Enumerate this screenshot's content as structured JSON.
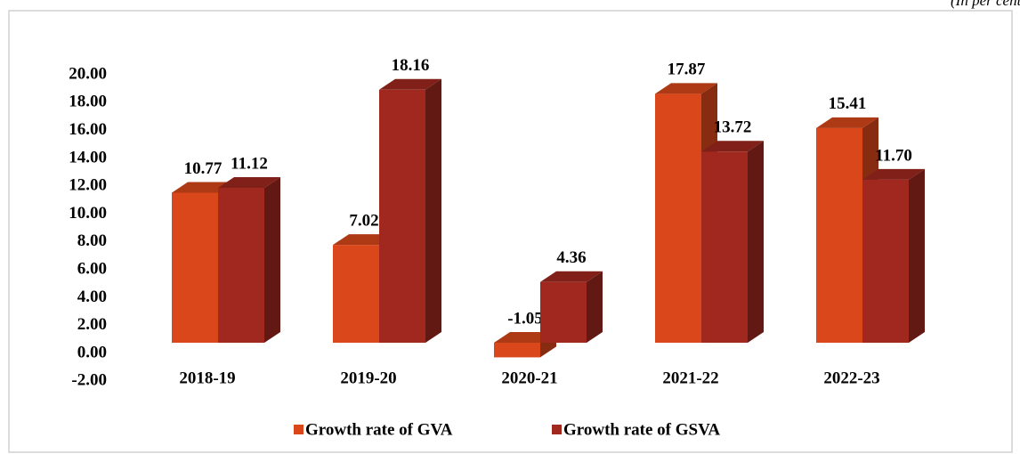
{
  "chart_data": {
    "type": "bar3d",
    "subtitle": "(In per cent)",
    "categories": [
      "2018-19",
      "2019-20",
      "2020-21",
      "2021-22",
      "2022-23"
    ],
    "series": [
      {
        "name": "Growth rate of GVA",
        "color": "#d9471a",
        "values": [
          10.77,
          7.02,
          -1.05,
          17.87,
          15.41
        ],
        "value_labels": [
          "10.77",
          "7.02",
          "-1.05",
          "17.87",
          "15.41"
        ]
      },
      {
        "name": "Growth rate of GSVA",
        "color": "#a0281e",
        "values": [
          11.12,
          18.16,
          4.36,
          13.72,
          11.7
        ],
        "value_labels": [
          "11.12",
          "18.16",
          "4.36",
          "13.72",
          "11.70"
        ]
      }
    ],
    "ylim": [
      -2,
      20
    ],
    "yticks": [
      {
        "value": -2,
        "label": "-2.00"
      },
      {
        "value": 0,
        "label": "0.00"
      },
      {
        "value": 2,
        "label": "2.00"
      },
      {
        "value": 4,
        "label": "4.00"
      },
      {
        "value": 6,
        "label": "6.00"
      },
      {
        "value": 8,
        "label": "8.00"
      },
      {
        "value": 10,
        "label": "10.00"
      },
      {
        "value": 12,
        "label": "12.00"
      },
      {
        "value": 14,
        "label": "14.00"
      },
      {
        "value": 16,
        "label": "16.00"
      },
      {
        "value": 18,
        "label": "18.00"
      },
      {
        "value": 20,
        "label": "20.00"
      }
    ],
    "legend": "bottom"
  }
}
